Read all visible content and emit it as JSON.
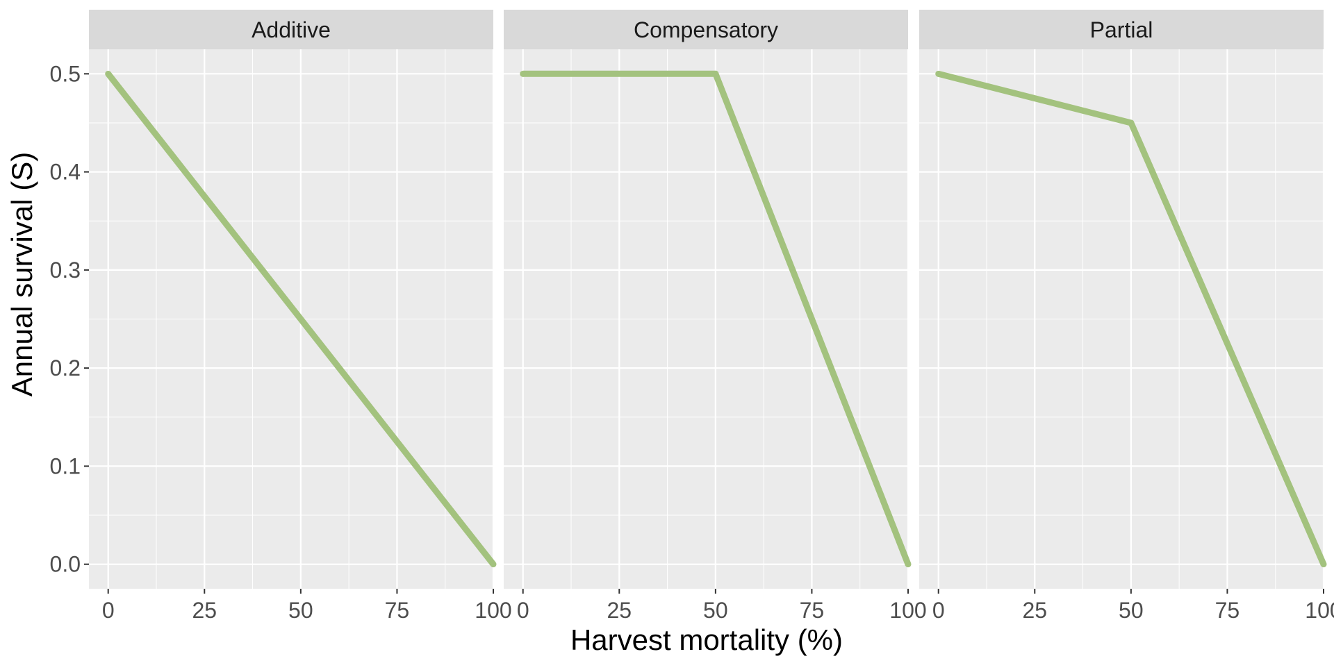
{
  "chart_data": {
    "type": "line",
    "xlabel": "Harvest mortality (%)",
    "ylabel": "Annual survival (S)",
    "x_ticks": [
      0,
      25,
      50,
      75,
      100
    ],
    "y_ticks": [
      0.0,
      0.1,
      0.2,
      0.3,
      0.4,
      0.5
    ],
    "y_tick_labels": [
      "0.0",
      "0.1",
      "0.2",
      "0.3",
      "0.4",
      "0.5"
    ],
    "xlim": [
      -5,
      100
    ],
    "ylim": [
      -0.025,
      0.525
    ],
    "grid": true,
    "line_color": "#a3c27e",
    "panel_background": "#ebebeb",
    "strip_background": "#d9d9d9",
    "grid_color": "#ffffff",
    "facets": [
      {
        "label": "Additive",
        "x": [
          0,
          100
        ],
        "y": [
          0.5,
          0.0
        ]
      },
      {
        "label": "Compensatory",
        "x": [
          0,
          50,
          100
        ],
        "y": [
          0.5,
          0.5,
          0.0
        ]
      },
      {
        "label": "Partial",
        "x": [
          0,
          50,
          100
        ],
        "y": [
          0.5,
          0.45,
          0.0
        ]
      }
    ]
  }
}
